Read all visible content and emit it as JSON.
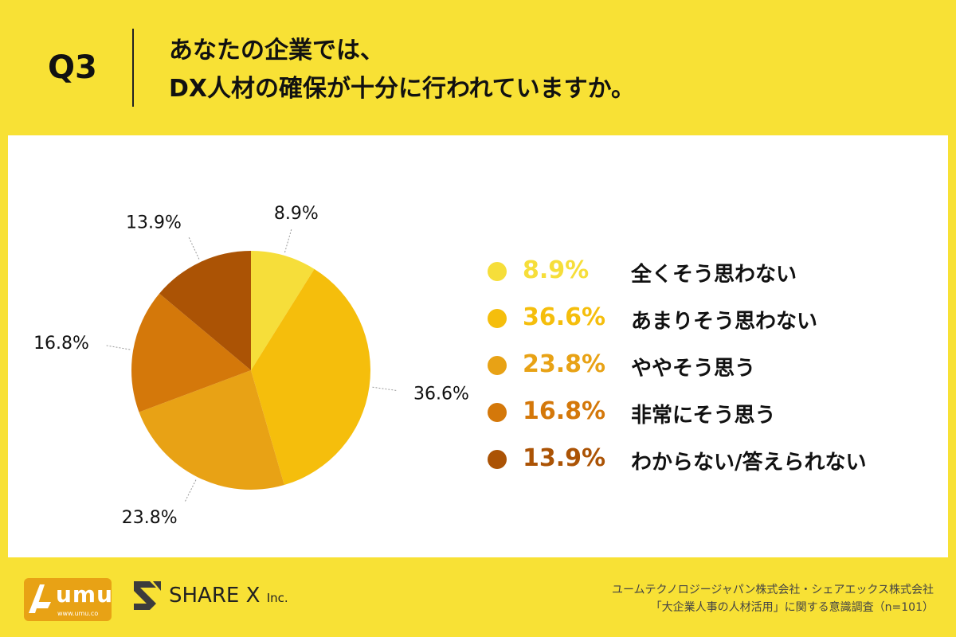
{
  "question": {
    "label": "Q3",
    "line1": "あなたの企業では、",
    "line2": "DX人材の確保が十分に行われていますか。"
  },
  "chart_data": {
    "type": "pie",
    "start_angle_deg": 0,
    "direction": "clockwise",
    "slices": [
      {
        "label": "全くそう思わない",
        "value": 8.9,
        "display": "8.9%",
        "color": "#F6DE3A"
      },
      {
        "label": "あまりそう思わない",
        "value": 36.6,
        "display": "36.6%",
        "color": "#F5BE0C"
      },
      {
        "label": "ややそう思う",
        "value": 23.8,
        "display": "23.8%",
        "color": "#E8A215"
      },
      {
        "label": "非常にそう思う",
        "value": 16.8,
        "display": "16.8%",
        "color": "#D4780A"
      },
      {
        "label": "わからない/答えられない",
        "value": 13.9,
        "display": "13.9%",
        "color": "#AB5305"
      }
    ]
  },
  "logos": {
    "umu": {
      "name": "umu",
      "url": "www.umu.co",
      "color": "#E8A215"
    },
    "sharex": {
      "name": "SHARE X",
      "suffix": "Inc."
    }
  },
  "credit": {
    "line1": "ユームテクノロジージャパン株式会社・シェアエックス株式会社",
    "line2": "「大企業人事の人材活用」に関する意識調査（n=101）"
  }
}
